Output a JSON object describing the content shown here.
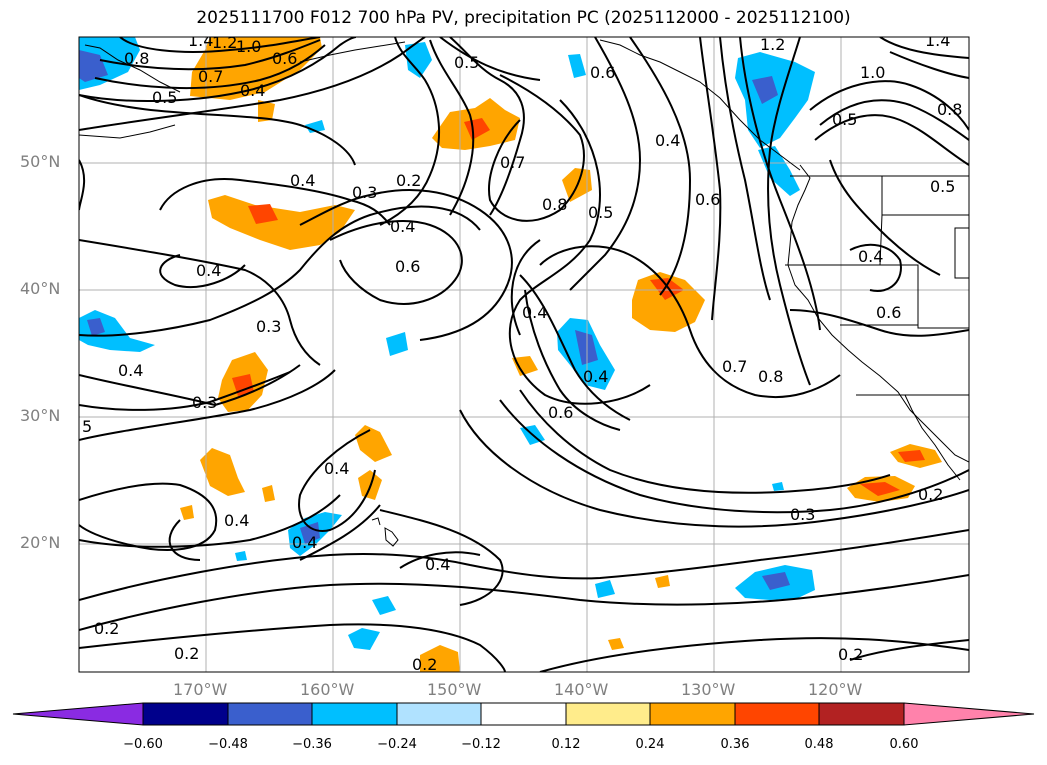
{
  "title": "2025111700 F012 700 hPa PV, precipitation PC (2025112000 - 2025112100)",
  "lat_labels": [
    "50°N",
    "40°N",
    "30°N",
    "20°N"
  ],
  "lon_labels": [
    "170°W",
    "160°W",
    "150°W",
    "140°W",
    "130°W",
    "120°W"
  ],
  "colorbar": {
    "ticks": [
      "−0.60",
      "−0.48",
      "−0.36",
      "−0.24",
      "−0.12",
      "0.12",
      "0.24",
      "0.36",
      "0.48",
      "0.60"
    ],
    "colors": [
      "#8a2be2",
      "#00008b",
      "#3a5fcd",
      "#00bfff",
      "#b0e2ff",
      "#ffffff",
      "#ffec8b",
      "#ffa500",
      "#ff4500",
      "#b22222",
      "#ff82ab"
    ]
  },
  "contour_labels": [
    "1.4",
    "1.2",
    "1.0",
    "0.8",
    "0.7",
    "0.6",
    "0.4",
    "0.5",
    "0.5",
    "0.6",
    "0.4",
    "0.7",
    "0.4",
    "0.3",
    "0.2",
    "0.4",
    "0.6",
    "0.8",
    "0.5",
    "0.6",
    "1.0",
    "0.8",
    "0.5",
    "0.4",
    "0.6",
    "0.4",
    "0.3",
    "0.4",
    "0.3",
    "5",
    "0.4",
    "0.4",
    "0.4",
    "0.6",
    "0.4",
    "0.7",
    "0.8",
    "0.2",
    "0.3",
    "0.4",
    "0.2",
    "0.2",
    "0.2",
    "0.2",
    "0.5",
    "1.4",
    "1.2",
    "0.4"
  ]
}
